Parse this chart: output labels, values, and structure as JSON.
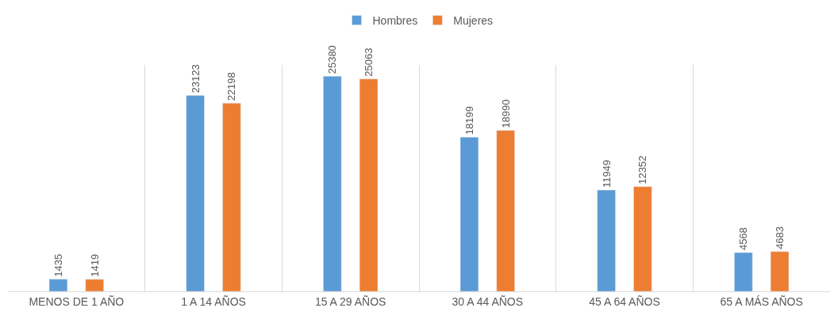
{
  "chart_data": {
    "type": "bar",
    "categories": [
      "MENOS DE 1 AÑO",
      "1 A 14 AÑOS",
      "15 A 29 AÑOS",
      "30 A 44 AÑOS",
      "45 A 64 AÑOS",
      "65 A MÁS AÑOS"
    ],
    "series": [
      {
        "name": "Hombres",
        "color": "#5b9bd5",
        "values": [
          1435,
          23123,
          25380,
          18199,
          11949,
          4568
        ]
      },
      {
        "name": "Mujeres",
        "color": "#ed7d31",
        "values": [
          1419,
          22198,
          25063,
          18990,
          12352,
          4683
        ]
      }
    ],
    "data_labels": true,
    "legend": "top",
    "grid": "x",
    "tick_labels": "x"
  }
}
